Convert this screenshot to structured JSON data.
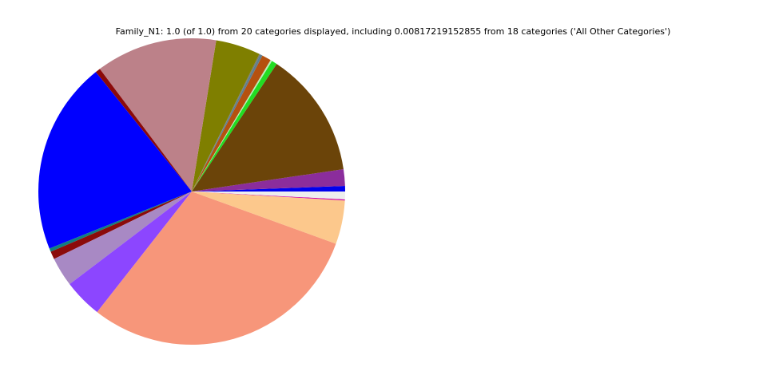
{
  "chart_data": {
    "type": "pie",
    "title": "Family_N1: 1.0 (of 1.0) from 20 categories displayed, including 0.00817219152855 from 18 categories ('All Other Categories')",
    "categories": [
      null,
      null,
      null,
      null,
      null,
      null,
      null,
      null,
      null,
      null,
      null,
      null,
      null,
      null,
      null,
      null,
      null,
      null,
      null,
      null
    ],
    "values": [
      0.0058,
      0.0175,
      0.1333,
      0.0058,
      0.0017,
      0.0097,
      0.0025,
      0.001,
      0.0472,
      0.1278,
      0.0053,
      0.2031,
      0.0036,
      0.0083,
      0.0308,
      0.0408,
      0.3004,
      0.0461,
      0.0011,
      0.0082
    ],
    "colors": [
      "#0000ee",
      "#8b2d9c",
      "#6b4409",
      "#22dd22",
      "#b8f0b8",
      "#b5510f",
      "#5f7f8f",
      "#777777",
      "#7f7f00",
      "#bc8189",
      "#8b0a0a",
      "#0000ff",
      "#0f7f7f",
      "#8b0b0b",
      "#a889c4",
      "#8c46ff",
      "#f7967a",
      "#fcc88c",
      "#cc00aa",
      "#eeeeee"
    ]
  }
}
